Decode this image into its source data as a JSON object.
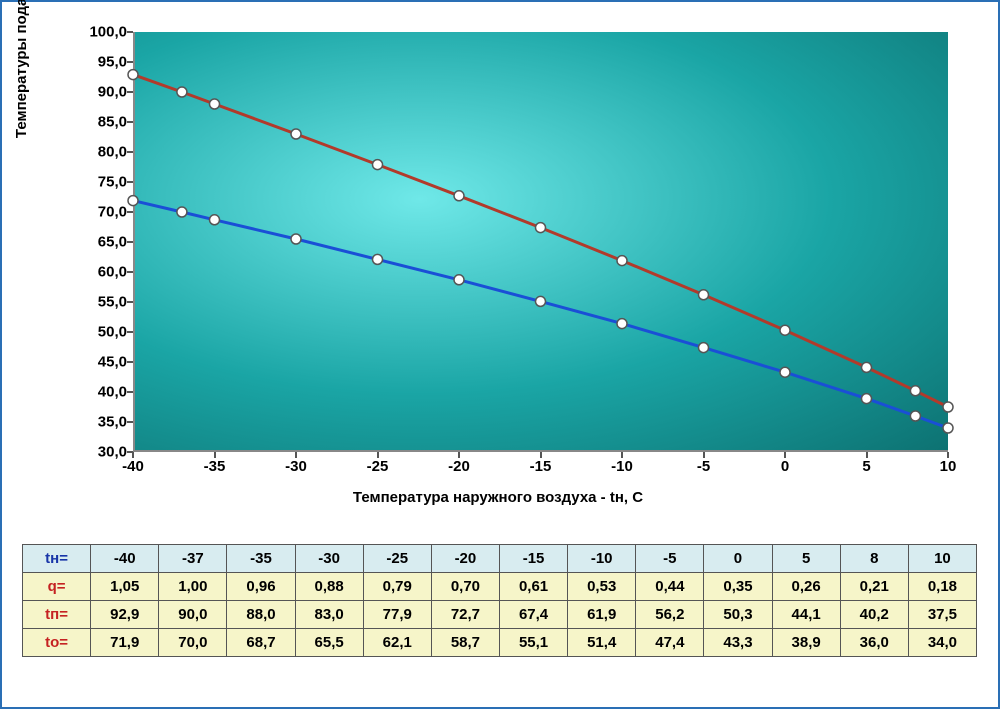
{
  "chart": {
    "type": "line",
    "background": "radial-gradient teal",
    "background_colors": [
      "#6fe8e8",
      "#1aa5a5",
      "#0d7272"
    ],
    "ylabel": "Температуры подачи и обратки - tп и to, С",
    "xlabel": "Температура наружного воздуха - tн, C",
    "label_fontsize": 15,
    "label_fontweight": "bold",
    "xlim": [
      -40,
      10
    ],
    "ylim": [
      30,
      100
    ],
    "x_ticks": [
      -40,
      -35,
      -30,
      -25,
      -20,
      -15,
      -10,
      -5,
      0,
      5,
      10
    ],
    "y_ticks": [
      30.0,
      35.0,
      40.0,
      45.0,
      50.0,
      55.0,
      60.0,
      65.0,
      70.0,
      75.0,
      80.0,
      85.0,
      90.0,
      95.0,
      100.0
    ],
    "y_tick_labels": [
      "30,0",
      "35,0",
      "40,0",
      "45,0",
      "50,0",
      "55,0",
      "60,0",
      "65,0",
      "70,0",
      "75,0",
      "80,0",
      "85,0",
      "90,0",
      "95,0",
      "100,0"
    ],
    "tick_fontsize": 15,
    "line_width": 3,
    "marker": "circle",
    "marker_size": 5,
    "marker_fill": "#ffffff",
    "marker_stroke": "#555555",
    "series": [
      {
        "name": "tп (подача)",
        "color": "#b23a2b",
        "x": [
          -40,
          -37,
          -35,
          -30,
          -25,
          -20,
          -15,
          -10,
          -5,
          0,
          5,
          8,
          10
        ],
        "y": [
          92.9,
          90.0,
          88.0,
          83.0,
          77.9,
          72.7,
          67.4,
          61.9,
          56.2,
          50.3,
          44.1,
          40.2,
          37.5
        ]
      },
      {
        "name": "to (обратка)",
        "color": "#1a4fd6",
        "x": [
          -40,
          -37,
          -35,
          -30,
          -25,
          -20,
          -15,
          -10,
          -5,
          0,
          5,
          8,
          10
        ],
        "y": [
          71.9,
          70.0,
          68.7,
          65.5,
          62.1,
          58.7,
          55.1,
          51.4,
          47.4,
          43.3,
          38.9,
          36.0,
          34.0
        ]
      }
    ]
  },
  "table": {
    "header_bg": "#d8ecf0",
    "data_bg": "#f6f5c9",
    "border_color": "#555555",
    "row_header_color_blue": "#1835a8",
    "row_header_color_red": "#c52222",
    "rows": [
      {
        "label": "tн=",
        "label_color": "blue",
        "cells": [
          "-40",
          "-37",
          "-35",
          "-30",
          "-25",
          "-20",
          "-15",
          "-10",
          "-5",
          "0",
          "5",
          "8",
          "10"
        ]
      },
      {
        "label": "q=",
        "label_color": "red",
        "cells": [
          "1,05",
          "1,00",
          "0,96",
          "0,88",
          "0,79",
          "0,70",
          "0,61",
          "0,53",
          "0,44",
          "0,35",
          "0,26",
          "0,21",
          "0,18"
        ]
      },
      {
        "label": "tп=",
        "label_color": "red",
        "cells": [
          "92,9",
          "90,0",
          "88,0",
          "83,0",
          "77,9",
          "72,7",
          "67,4",
          "61,9",
          "56,2",
          "50,3",
          "44,1",
          "40,2",
          "37,5"
        ]
      },
      {
        "label": "to=",
        "label_color": "red",
        "cells": [
          "71,9",
          "70,0",
          "68,7",
          "65,5",
          "62,1",
          "58,7",
          "55,1",
          "51,4",
          "47,4",
          "43,3",
          "38,9",
          "36,0",
          "34,0"
        ]
      }
    ]
  }
}
